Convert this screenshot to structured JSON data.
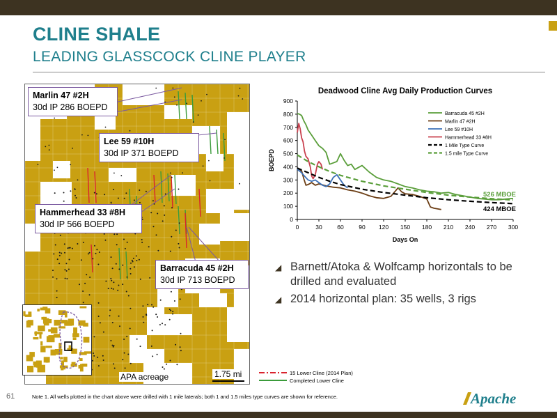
{
  "slide": {
    "title": "CLINE SHALE",
    "subtitle": "LEADING GLASSCOCK CLINE PLAYER",
    "page_number": "61",
    "footnote": "Note 1. All wells plotted in the chart above were drilled with 1 mile laterals; both 1 and 1.5 miles type curves are shown for reference.",
    "logo_text": "Apache",
    "colors": {
      "bars": "#3d3321",
      "title": "#1f7f8c",
      "accent": "#c9a012",
      "acreage": "#c9a012",
      "callout_border": "#7b5aa0"
    }
  },
  "map": {
    "callouts": [
      {
        "well": "Marlin 47 #2H",
        "ip": "30d IP 286 BOEPD"
      },
      {
        "well": "Lee 59 #10H",
        "ip": "30d IP 371 BOEPD"
      },
      {
        "well": "Hammerhead 33 #8H",
        "ip": "30d IP 566 BOEPD"
      },
      {
        "well": "Barracuda 45 #2H",
        "ip": "30d IP 713 BOEPD"
      }
    ],
    "acreage_label": "APA acreage",
    "scale_label": "1.75 mi",
    "plan_legend": [
      {
        "label": "15 Lower Cline (2014 Plan)",
        "color": "#d9232e"
      },
      {
        "label": "Completed Lower Cline",
        "color": "#3a9b3a"
      }
    ]
  },
  "bullets": [
    "Barnett/Atoka & Wolfcamp horizontals to be drilled and evaluated",
    "2014 horizontal plan: 35 wells, 3 rigs"
  ],
  "chart_data": {
    "type": "line",
    "title": "Deadwood Cline Avg Daily Production Curves",
    "title_superscript": "1",
    "xlabel": "Days On",
    "ylabel": "BOEPD",
    "xlim": [
      0,
      300
    ],
    "ylim": [
      0,
      900
    ],
    "xticks": [
      0,
      30,
      60,
      90,
      120,
      150,
      180,
      210,
      240,
      270,
      300
    ],
    "yticks": [
      0,
      100,
      200,
      300,
      400,
      500,
      600,
      700,
      800,
      900
    ],
    "grid": false,
    "legend_position": "top-right",
    "annotations": [
      {
        "text": "526 MBOE",
        "x": 300,
        "y": 190,
        "color": "#5a9e3a"
      },
      {
        "text": "424 MBOE",
        "x": 300,
        "y": 80,
        "color": "#000000"
      }
    ],
    "series": [
      {
        "name": "Barracuda 45 #2H",
        "color": "#5a9e3a",
        "dash": "solid",
        "x": [
          0,
          3,
          6,
          9,
          12,
          15,
          20,
          25,
          30,
          35,
          40,
          45,
          50,
          55,
          60,
          65,
          70,
          75,
          80,
          90,
          100,
          110,
          120,
          130,
          140,
          150,
          160,
          170,
          180,
          190,
          200,
          210,
          220,
          230,
          240,
          250,
          260,
          270,
          280,
          290,
          300
        ],
        "y": [
          805,
          800,
          790,
          750,
          720,
          680,
          640,
          600,
          560,
          540,
          510,
          420,
          430,
          440,
          500,
          450,
          410,
          420,
          380,
          410,
          360,
          320,
          300,
          290,
          270,
          250,
          240,
          225,
          215,
          210,
          200,
          205,
          190,
          180,
          170,
          160,
          155,
          150,
          150,
          155,
          160
        ]
      },
      {
        "name": "Marlin 47 #2H",
        "color": "#6b3d14",
        "dash": "solid",
        "x": [
          0,
          3,
          6,
          9,
          12,
          15,
          20,
          25,
          30,
          40,
          50,
          60,
          70,
          80,
          90,
          100,
          110,
          120,
          130,
          140,
          145,
          150,
          160,
          170,
          180,
          185,
          190,
          200
        ],
        "y": [
          390,
          380,
          370,
          310,
          260,
          265,
          280,
          260,
          270,
          255,
          245,
          240,
          225,
          215,
          200,
          180,
          165,
          160,
          175,
          240,
          210,
          195,
          190,
          175,
          155,
          95,
          85,
          75
        ]
      },
      {
        "name": "Lee 59 #10H",
        "color": "#3a6fb7",
        "dash": "solid",
        "x": [
          0,
          5,
          10,
          15,
          20,
          25,
          30,
          35,
          40,
          45,
          50,
          55,
          60,
          65,
          70
        ],
        "y": [
          380,
          360,
          330,
          300,
          290,
          300,
          280,
          260,
          250,
          270,
          320,
          340,
          300,
          260,
          240
        ]
      },
      {
        "name": "Hammerhead 33 #8H",
        "color": "#c9404e",
        "dash": "solid",
        "x": [
          0,
          2,
          4,
          6,
          8,
          10,
          12,
          15,
          18,
          20,
          22,
          25,
          28,
          30,
          33,
          35
        ],
        "y": [
          660,
          730,
          690,
          620,
          590,
          520,
          480,
          460,
          400,
          330,
          310,
          340,
          420,
          440,
          420,
          380
        ]
      },
      {
        "name": "1 Mile Type Curve",
        "color": "#000000",
        "dash": "dashed",
        "x": [
          0,
          15,
          30,
          45,
          60,
          90,
          120,
          150,
          180,
          210,
          240,
          270,
          300
        ],
        "y": [
          390,
          355,
          320,
          290,
          265,
          230,
          205,
          185,
          165,
          150,
          138,
          128,
          120
        ]
      },
      {
        "name": "1.5 mile Type Curve",
        "color": "#5a9e3a",
        "dash": "dashed",
        "x": [
          0,
          15,
          30,
          45,
          60,
          90,
          120,
          150,
          180,
          210,
          240,
          270,
          300
        ],
        "y": [
          490,
          440,
          400,
          365,
          335,
          290,
          255,
          230,
          205,
          185,
          170,
          158,
          148
        ]
      }
    ]
  }
}
